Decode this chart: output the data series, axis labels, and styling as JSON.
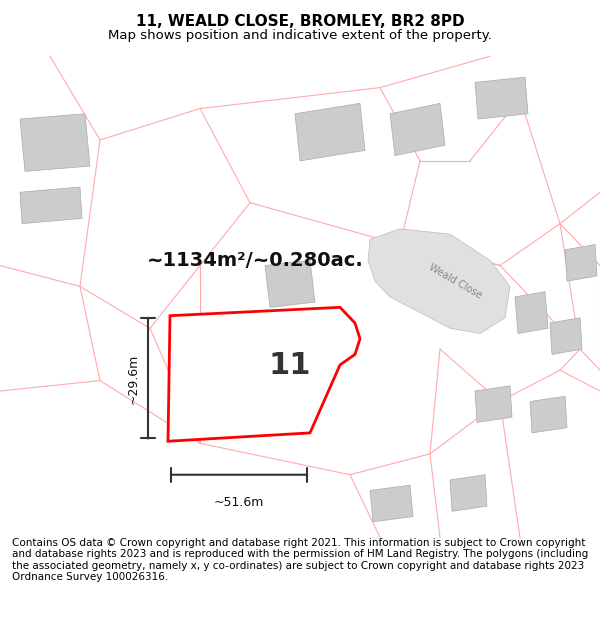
{
  "title": "11, WEALD CLOSE, BROMLEY, BR2 8PD",
  "subtitle": "Map shows position and indicative extent of the property.",
  "footer": "Contains OS data © Crown copyright and database right 2021. This information is subject to Crown copyright and database rights 2023 and is reproduced with the permission of HM Land Registry. The polygons (including the associated geometry, namely x, y co-ordinates) are subject to Crown copyright and database rights 2023 Ordnance Survey 100026316.",
  "area_label": "~1134m²/~0.280ac.",
  "number_label": "11",
  "width_label": "~51.6m",
  "height_label": "~29.6m",
  "road_label": "Weald Close",
  "bg_color": "#ffffff",
  "map_bg": "#f8f0f0",
  "plot_color": "#ff0000",
  "plot_fill": "#ffffff",
  "road_fill": "#d8d8d8",
  "building_fill": "#cccccc",
  "boundary_color": "#ffaaaa",
  "title_fontsize": 11,
  "subtitle_fontsize": 9.5,
  "footer_fontsize": 7.5
}
